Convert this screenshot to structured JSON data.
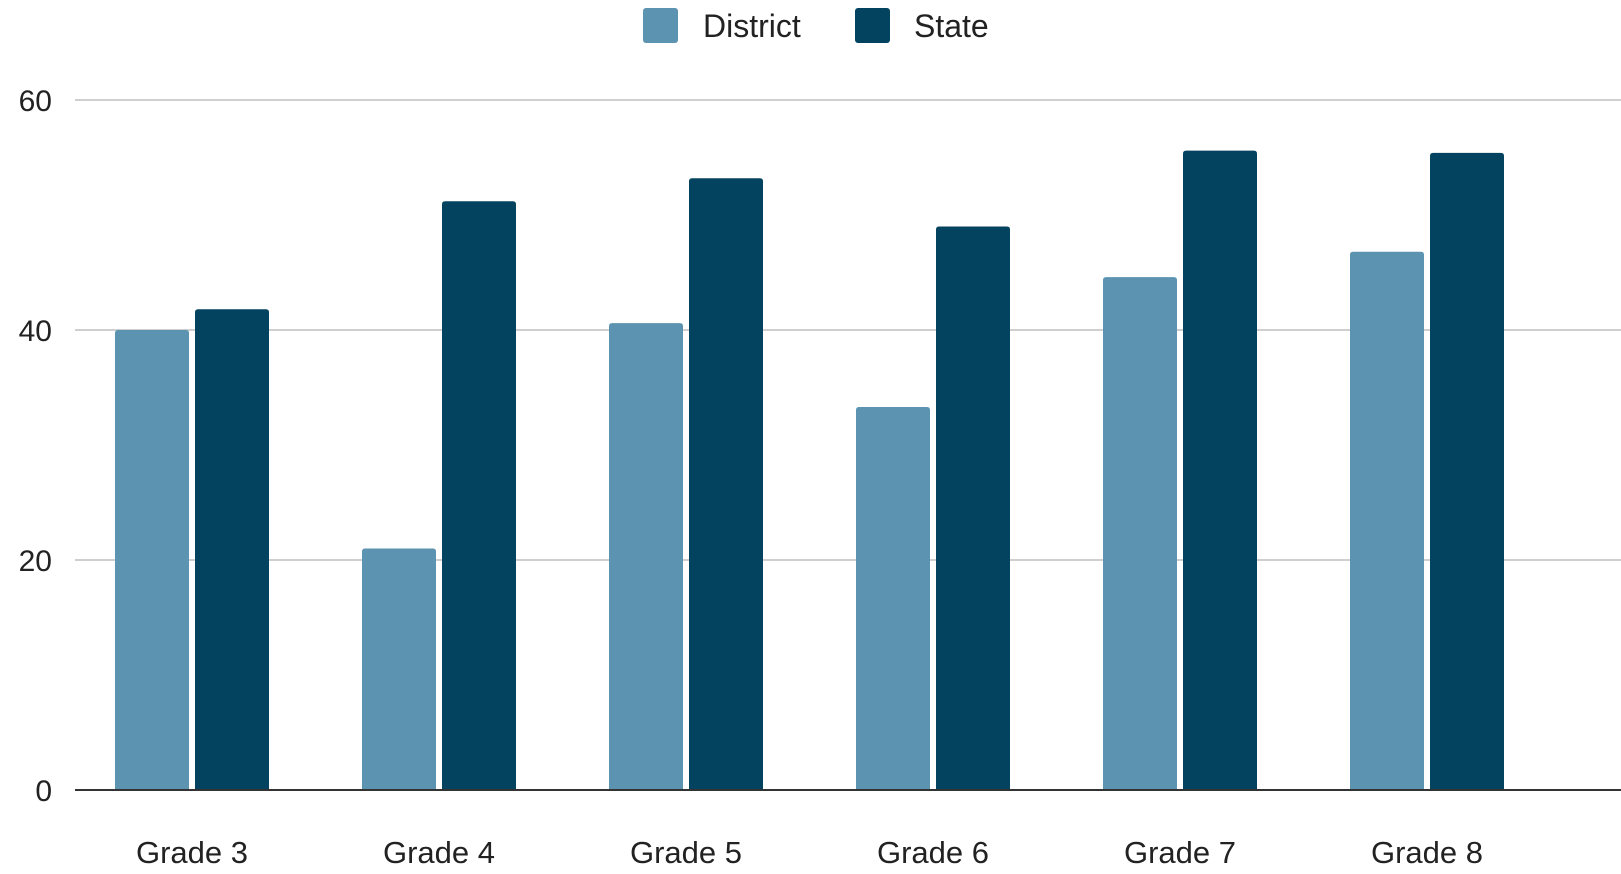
{
  "chart_data": {
    "type": "bar",
    "title": "",
    "xlabel": "",
    "ylabel": "",
    "categories": [
      "Grade 3",
      "Grade 4",
      "Grade 5",
      "Grade 6",
      "Grade 7",
      "Grade 8"
    ],
    "series": [
      {
        "name": "District",
        "color": "#5b93b0",
        "values": [
          40,
          21,
          40.6,
          33.3,
          44.6,
          46.8
        ]
      },
      {
        "name": "State",
        "color": "#03435f",
        "values": [
          41.8,
          51.2,
          53.2,
          49,
          55.6,
          55.4
        ]
      }
    ],
    "ylim": [
      0,
      60
    ],
    "yticks": [
      0,
      20,
      40,
      60
    ],
    "grid": true,
    "legend_position": "top-center"
  }
}
